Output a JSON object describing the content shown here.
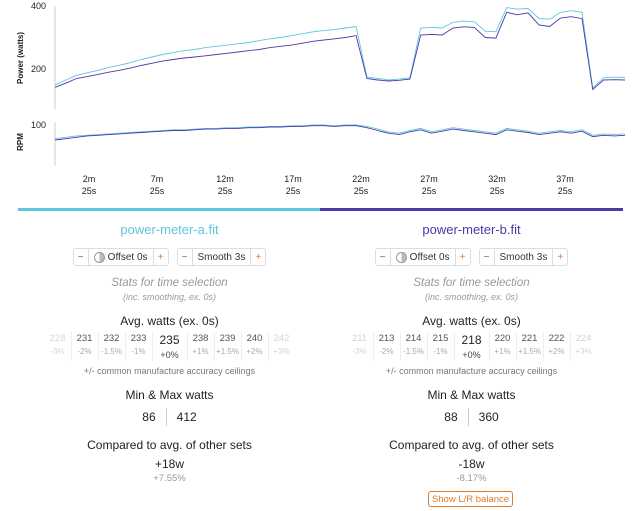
{
  "chart_data": {
    "type": "line",
    "power": {
      "ylabel": "Power (watts)",
      "ticks": [
        "400",
        "200",
        "100"
      ],
      "series": [
        {
          "name": "power-meter-a.fit",
          "color": "#5ec6de",
          "y": [
            150,
            165,
            180,
            188,
            196,
            205,
            212,
            220,
            230,
            238,
            246,
            252,
            258,
            262,
            268,
            272,
            276,
            280,
            284,
            290,
            296,
            300,
            306,
            312,
            318,
            322,
            325,
            330,
            335,
            175,
            170,
            165,
            168,
            172,
            330,
            332,
            330,
            348,
            352,
            350,
            320,
            318,
            395,
            390,
            392,
            360,
            358,
            380,
            385,
            380,
            140,
            172,
            174,
            173
          ]
        },
        {
          "name": "power-meter-b.fit",
          "color": "#4b3aa8",
          "y": [
            142,
            155,
            170,
            176,
            183,
            190,
            196,
            203,
            211,
            218,
            225,
            230,
            235,
            238,
            242,
            246,
            250,
            254,
            258,
            262,
            268,
            272,
            276,
            282,
            288,
            292,
            296,
            300,
            306,
            170,
            165,
            162,
            164,
            168,
            308,
            310,
            308,
            330,
            334,
            332,
            300,
            298,
            380,
            372,
            378,
            340,
            335,
            362,
            366,
            360,
            135,
            165,
            166,
            165
          ]
        }
      ]
    },
    "rpm": {
      "ylabel": "RPM",
      "ticks": [
        "100"
      ],
      "series": [
        {
          "name": "power-meter-a.fit",
          "color": "#5ec6de",
          "y": [
            80,
            82,
            84,
            85,
            86,
            87,
            88,
            89,
            90,
            91,
            92,
            93,
            93,
            94,
            95,
            95,
            96,
            96,
            97,
            97,
            98,
            98,
            99,
            99,
            100,
            100,
            99,
            100,
            100,
            98,
            94,
            90,
            88,
            92,
            95,
            90,
            93,
            96,
            94,
            92,
            90,
            88,
            95,
            93,
            91,
            88,
            90,
            92,
            90,
            93,
            85,
            87,
            86,
            87
          ]
        },
        {
          "name": "power-meter-b.fit",
          "color": "#4b3aa8",
          "y": [
            78,
            80,
            82,
            84,
            85,
            86,
            87,
            88,
            89,
            90,
            91,
            92,
            92,
            93,
            94,
            94,
            95,
            95,
            96,
            96,
            97,
            97,
            98,
            98,
            99,
            99,
            98,
            99,
            99,
            96,
            92,
            88,
            86,
            90,
            93,
            88,
            91,
            94,
            92,
            90,
            88,
            86,
            93,
            91,
            89,
            86,
            88,
            90,
            88,
            91,
            83,
            85,
            84,
            85
          ]
        }
      ]
    },
    "x_ticks": [
      {
        "l1": "2m",
        "l2": "25s"
      },
      {
        "l1": "7m",
        "l2": "25s"
      },
      {
        "l1": "12m",
        "l2": "25s"
      },
      {
        "l1": "17m",
        "l2": "25s"
      },
      {
        "l1": "22m",
        "l2": "25s"
      },
      {
        "l1": "27m",
        "l2": "25s"
      },
      {
        "l1": "32m",
        "l2": "25s"
      },
      {
        "l1": "37m",
        "l2": "25s"
      }
    ]
  },
  "colors": {
    "a": "#5ec6de",
    "b": "#4b3aa8",
    "accent": "#e07a2d"
  },
  "icons": {
    "minus": "−",
    "plus": "+",
    "offset_icon": "gauge-icon"
  },
  "panels": {
    "a": {
      "filename": "power-meter-a.fit",
      "offset_label": "Offset 0s",
      "smooth_label": "Smooth 3s",
      "stats_title": "Stats for time selection",
      "stats_sub": "(inc. smoothing, ex. 0s)",
      "avg_title": "Avg. watts (ex. 0s)",
      "cells": [
        {
          "v": "228",
          "p": "-3%"
        },
        {
          "v": "231",
          "p": "-2%"
        },
        {
          "v": "232",
          "p": "-1.5%"
        },
        {
          "v": "233",
          "p": "-1%"
        },
        {
          "v": "235",
          "p": "+0%"
        },
        {
          "v": "238",
          "p": "+1%"
        },
        {
          "v": "239",
          "p": "+1.5%"
        },
        {
          "v": "240",
          "p": "+2%"
        },
        {
          "v": "242",
          "p": "+3%"
        }
      ],
      "note": "+/- common manufacture accuracy ceilings",
      "mm_title": "Min & Max watts",
      "min": "86",
      "max": "412",
      "cmp_title": "Compared to avg. of other sets",
      "cmp_val": "+18w",
      "cmp_pct": "+7.55%"
    },
    "b": {
      "filename": "power-meter-b.fit",
      "offset_label": "Offset 0s",
      "smooth_label": "Smooth 3s",
      "stats_title": "Stats for time selection",
      "stats_sub": "(inc. smoothing, ex. 0s)",
      "avg_title": "Avg. watts (ex. 0s)",
      "cells": [
        {
          "v": "211",
          "p": "-3%"
        },
        {
          "v": "213",
          "p": "-2%"
        },
        {
          "v": "214",
          "p": "-1.5%"
        },
        {
          "v": "215",
          "p": "-1%"
        },
        {
          "v": "218",
          "p": "+0%"
        },
        {
          "v": "220",
          "p": "+1%"
        },
        {
          "v": "221",
          "p": "+1.5%"
        },
        {
          "v": "222",
          "p": "+2%"
        },
        {
          "v": "224",
          "p": "+3%"
        }
      ],
      "note": "+/- common manufacture accuracy ceilings",
      "mm_title": "Min & Max watts",
      "min": "88",
      "max": "360",
      "cmp_title": "Compared to avg. of other sets",
      "cmp_val": "-18w",
      "cmp_pct": "-8.17%"
    }
  },
  "lr_button": "Show L/R balance"
}
